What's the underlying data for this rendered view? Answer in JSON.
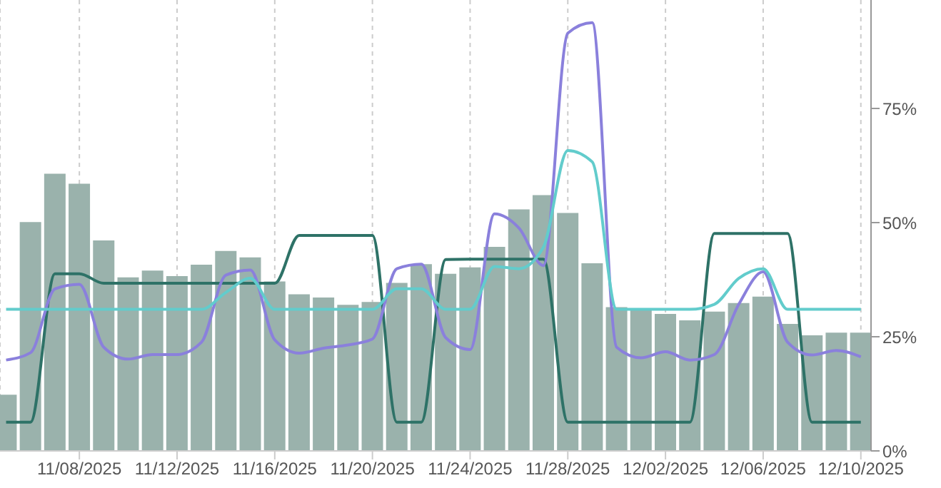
{
  "chart_data": {
    "type": "bar",
    "x": [
      "2025-11-05",
      "2025-11-06",
      "2025-11-07",
      "2025-11-08",
      "2025-11-09",
      "2025-11-10",
      "2025-11-11",
      "2025-11-12",
      "2025-11-13",
      "2025-11-14",
      "2025-11-15",
      "2025-11-16",
      "2025-11-17",
      "2025-11-18",
      "2025-11-19",
      "2025-11-20",
      "2025-11-21",
      "2025-11-22",
      "2025-11-23",
      "2025-11-24",
      "2025-11-25",
      "2025-11-26",
      "2025-11-27",
      "2025-11-28",
      "2025-11-29",
      "2025-11-30",
      "2025-12-01",
      "2025-12-02",
      "2025-12-03",
      "2025-12-04",
      "2025-12-05",
      "2025-12-06",
      "2025-12-07",
      "2025-12-08",
      "2025-12-09",
      "2025-12-10"
    ],
    "series": [
      {
        "color": "#9ab2ac",
        "values": [
          12.3,
          50.1,
          60.7,
          58.5,
          46.1,
          38.0,
          39.5,
          38.3,
          40.8,
          43.8,
          42.4,
          37.1,
          34.3,
          33.6,
          32.0,
          32.6,
          36.8,
          40.9,
          38.8,
          40.2,
          44.7,
          52.9,
          56.0,
          52.1,
          41.1,
          31.5,
          31.0,
          30.0,
          28.6,
          30.5,
          32.4,
          33.8,
          27.8,
          25.3,
          25.9,
          25.9
        ]
      },
      {
        "type": "line",
        "color": "#2e7267",
        "values": [
          6.3,
          6.3,
          38.8,
          38.8,
          36.7,
          36.7,
          36.7,
          36.7,
          36.7,
          36.7,
          36.7,
          36.7,
          47.2,
          47.2,
          47.2,
          47.2,
          6.3,
          6.3,
          41.9,
          42.0,
          42.0,
          42.0,
          42.0,
          6.3,
          6.3,
          6.3,
          6.3,
          6.3,
          6.3,
          47.6,
          47.6,
          47.6,
          47.6,
          6.3,
          6.3,
          6.3
        ]
      },
      {
        "type": "line",
        "color": "#8a80dc",
        "values": [
          19.9,
          21.5,
          35.5,
          36.5,
          22.7,
          20.1,
          21.1,
          21.1,
          23.8,
          38.5,
          39.6,
          24.3,
          21.4,
          22.5,
          23.2,
          24.5,
          39.9,
          40.9,
          24.8,
          22.2,
          51.9,
          48.8,
          40.6,
          91.5,
          93.8,
          22.7,
          20.4,
          21.7,
          19.9,
          21.1,
          32.1,
          39.2,
          23.8,
          21.0,
          22.0,
          20.6
        ]
      },
      {
        "type": "line",
        "color": "#62cccc",
        "values": [
          31.0,
          31.0,
          31.0,
          31.0,
          31.0,
          31.0,
          31.0,
          31.0,
          31.0,
          34.7,
          37.8,
          31.0,
          31.0,
          31.0,
          31.0,
          31.0,
          35.5,
          35.5,
          31.0,
          31.0,
          40.4,
          39.9,
          44.6,
          65.8,
          63.3,
          31.0,
          31.0,
          31.0,
          31.0,
          32.1,
          37.8,
          39.9,
          31.0,
          31.0,
          31.0,
          31.0
        ]
      }
    ],
    "xlim": [
      "2025-11-04T18:00",
      "2025-12-10T10:00"
    ],
    "xticks": [
      {
        "value": "2025-11-08",
        "label": "11/08/2025"
      },
      {
        "value": "2025-11-12",
        "label": "11/12/2025"
      },
      {
        "value": "2025-11-16",
        "label": "11/16/2025"
      },
      {
        "value": "2025-11-20",
        "label": "11/20/2025"
      },
      {
        "value": "2025-11-24",
        "label": "11/24/2025"
      },
      {
        "value": "2025-11-28",
        "label": "11/28/2025"
      },
      {
        "value": "2025-12-02",
        "label": "12/02/2025"
      },
      {
        "value": "2025-12-06",
        "label": "12/06/2025"
      },
      {
        "value": "2025-12-10",
        "label": "12/10/2025"
      }
    ],
    "ylim": [
      0,
      98.75
    ],
    "yticks": [
      {
        "value": 0,
        "label": "0%"
      },
      {
        "value": 25,
        "label": "25%"
      },
      {
        "value": 50,
        "label": "50%"
      },
      {
        "value": 75,
        "label": "75%"
      }
    ],
    "grid": "x"
  }
}
